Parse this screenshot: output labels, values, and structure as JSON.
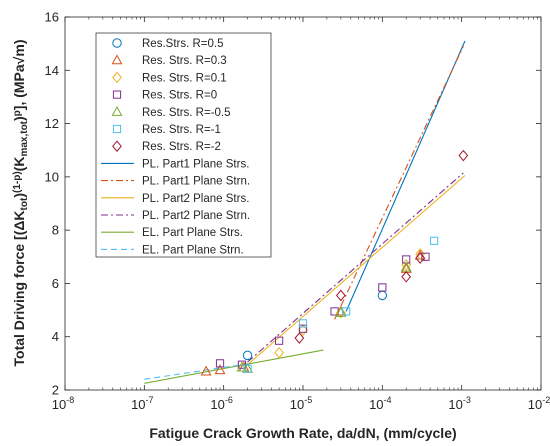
{
  "chart_data": {
    "type": "scatter",
    "xlabel": "Fatigue Crack Growth Rate, da/dN, (mm/cycle)",
    "ylabel_parts": {
      "a": "Total Driving force [(ΔK",
      "b": "tot",
      "c": ")",
      "d": "(1-p)",
      "e": "(K",
      "f": "max,tot",
      "g": ")",
      "h": "p",
      "i": "], (MPa√m)"
    },
    "x_scale": "log",
    "xlim": [
      1e-08,
      0.01
    ],
    "ylim": [
      2,
      16
    ],
    "x_ticks": [
      {
        "value": 1e-08,
        "base": "10",
        "exp": "-8"
      },
      {
        "value": 1e-07,
        "base": "10",
        "exp": "-7"
      },
      {
        "value": 1e-06,
        "base": "10",
        "exp": "-6"
      },
      {
        "value": 1e-05,
        "base": "10",
        "exp": "-5"
      },
      {
        "value": 0.0001,
        "base": "10",
        "exp": "-4"
      },
      {
        "value": 0.001,
        "base": "10",
        "exp": "-3"
      },
      {
        "value": 0.01,
        "base": "10",
        "exp": "-2"
      }
    ],
    "y_ticks": [
      {
        "value": 2,
        "label": "2"
      },
      {
        "value": 4,
        "label": "4"
      },
      {
        "value": 6,
        "label": "6"
      },
      {
        "value": 8,
        "label": "8"
      },
      {
        "value": 10,
        "label": "10"
      },
      {
        "value": 12,
        "label": "12"
      },
      {
        "value": 14,
        "label": "14"
      },
      {
        "value": 16,
        "label": "16"
      }
    ],
    "grid": false,
    "legend_position": "top-left",
    "series": [
      {
        "name": "Res.Strs. R=0.5",
        "kind": "marker",
        "marker": "circle",
        "color": "#0072BD",
        "x": [
          2e-06,
          0.0001
        ],
        "y": [
          3.3,
          5.55
        ]
      },
      {
        "name": "Res. Strs. R=0.3",
        "kind": "marker",
        "marker": "triangle",
        "color": "#D95319",
        "x": [
          6e-07,
          9e-07,
          1.8e-06,
          3e-05,
          0.0002,
          0.0003
        ],
        "y": [
          2.7,
          2.75,
          2.85,
          4.95,
          6.55,
          7.05
        ]
      },
      {
        "name": "Res. Strs. R=0.1",
        "kind": "marker",
        "marker": "diamond",
        "color": "#EDB120",
        "x": [
          5e-06,
          1e-05,
          3e-05,
          0.0002,
          0.0003
        ],
        "y": [
          3.4,
          4.25,
          4.9,
          6.7,
          7.1
        ]
      },
      {
        "name": "Res. Strs. R=0",
        "kind": "marker",
        "marker": "square",
        "color": "#7E2F8E",
        "x": [
          9e-07,
          1.7e-06,
          5e-06,
          1e-05,
          2.5e-05,
          0.0001,
          0.0002,
          0.00035
        ],
        "y": [
          3.0,
          2.95,
          3.85,
          4.3,
          4.95,
          5.85,
          6.9,
          7.0
        ]
      },
      {
        "name": "Res. Strs. R=-0.5",
        "kind": "marker",
        "marker": "triangle",
        "color": "#77AC30",
        "x": [
          1.7e-06,
          2e-06,
          3e-05,
          0.0002
        ],
        "y": [
          2.85,
          2.8,
          4.9,
          6.6
        ]
      },
      {
        "name": "Res. Strs. R=-1",
        "kind": "marker",
        "marker": "square",
        "color": "#4DBEEE",
        "x": [
          2e-06,
          1e-05,
          3.5e-05,
          0.00045
        ],
        "y": [
          2.8,
          4.5,
          4.95,
          7.6
        ]
      },
      {
        "name": "Res. Strs. R=-2",
        "kind": "marker",
        "marker": "diamond",
        "color": "#A2142F",
        "x": [
          9e-06,
          3e-05,
          0.0002,
          0.0003,
          0.00105
        ],
        "y": [
          3.95,
          5.55,
          6.25,
          6.95,
          10.8
        ]
      },
      {
        "name": "PL. Part1 Plane Strs.",
        "kind": "line",
        "dash": "solid",
        "color": "#0072BD",
        "x": [
          3.5e-05,
          0.0011
        ],
        "y": [
          4.95,
          15.1
        ]
      },
      {
        "name": "PL. Part1 Plane Strn.",
        "kind": "line",
        "dash": "dashdot",
        "color": "#D95319",
        "x": [
          2.5e-05,
          0.00105
        ],
        "y": [
          4.65,
          14.9
        ]
      },
      {
        "name": "PL. Part2 Plane Strs.",
        "kind": "line",
        "dash": "solid",
        "color": "#EDB120",
        "x": [
          2e-06,
          0.0011
        ],
        "y": [
          2.95,
          10.05
        ]
      },
      {
        "name": "PL. Part2 Plane Strn.",
        "kind": "line",
        "dash": "dashdot",
        "color": "#7E2F8E",
        "x": [
          2e-06,
          0.00105
        ],
        "y": [
          3.05,
          10.15
        ]
      },
      {
        "name": "EL. Part Plane Strs.",
        "kind": "line",
        "dash": "solid",
        "color": "#77AC30",
        "x": [
          1e-07,
          1.8e-05
        ],
        "y": [
          2.25,
          3.5
        ]
      },
      {
        "name": "EL. Part Plane Strn.",
        "kind": "line",
        "dash": "dashed",
        "color": "#4DBEEE",
        "x": [
          1e-07,
          2.2e-06
        ],
        "y": [
          2.4,
          3.0
        ]
      }
    ]
  }
}
